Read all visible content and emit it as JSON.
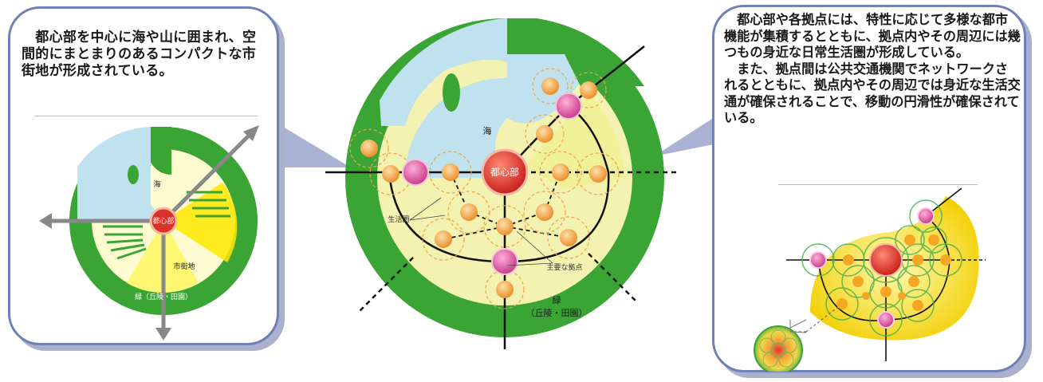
{
  "left_panel": {
    "caption": "　都心部を中心に海や山に囲まれ、空間的にまとまりのあるコンパクトな市街地が形成されている。",
    "labels": {
      "sea": "海",
      "center": "都心部",
      "urban": "市街地",
      "green": "緑（丘陵・田園）"
    }
  },
  "center_diagram": {
    "labels": {
      "sea": "海",
      "center": "都心部",
      "life_zone": "生活圏",
      "major_hub": "主要な拠点",
      "green_line1": "緑",
      "green_line2": "（丘陵・田園）"
    }
  },
  "right_panel": {
    "caption": "　都心部や各拠点には、特性に応じて多様な都市機能が集積するとともに、拠点内やその周辺には幾つもの身近な日常生活圏が形成している。\n　また、拠点間は公共交通機関でネットワークされるとともに、拠点内やその周辺では身近な生活交通が確保されることで、移動の円滑性が確保されている。"
  },
  "colors": {
    "green": "#3aa535",
    "sea": "#bfe2ee",
    "urban_yellow": "#f3f2b0",
    "panel_border": "#6f7fb8",
    "center_node": "#d8322a",
    "major_node": "#d84a9a",
    "minor_node": "#f0a24a"
  }
}
